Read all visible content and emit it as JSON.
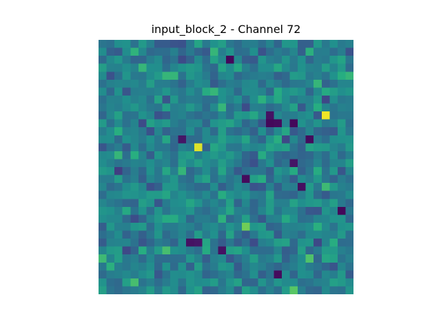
{
  "chart_data": {
    "type": "heatmap",
    "title": "input_block_2 - Channel 72",
    "xlabel": "",
    "ylabel": "",
    "rows": 32,
    "cols": 32,
    "colormap": "viridis",
    "vrange": [
      0,
      1
    ],
    "axes_visible": false,
    "grid": false,
    "legend": "none",
    "hot_cells": [
      {
        "row": 9,
        "col": 28,
        "value": 0.98
      },
      {
        "row": 13,
        "col": 12,
        "value": 0.95
      },
      {
        "row": 23,
        "col": 18,
        "value": 0.78
      },
      {
        "row": 27,
        "col": 26,
        "value": 0.72
      },
      {
        "row": 31,
        "col": 24,
        "value": 0.74
      },
      {
        "row": 26,
        "col": 8,
        "value": 0.7
      },
      {
        "row": 30,
        "col": 4,
        "value": 0.7
      },
      {
        "row": 27,
        "col": 0,
        "value": 0.68
      },
      {
        "row": 4,
        "col": 9,
        "value": 0.66
      },
      {
        "row": 6,
        "col": 14,
        "value": 0.66
      },
      {
        "row": 8,
        "col": 15,
        "value": 0.66
      },
      {
        "row": 18,
        "col": 28,
        "value": 0.68
      }
    ],
    "cold_cells": [
      {
        "row": 2,
        "col": 16,
        "value": 0.02
      },
      {
        "row": 10,
        "col": 21,
        "value": 0.02
      },
      {
        "row": 10,
        "col": 22,
        "value": 0.03
      },
      {
        "row": 9,
        "col": 21,
        "value": 0.05
      },
      {
        "row": 10,
        "col": 24,
        "value": 0.02
      },
      {
        "row": 12,
        "col": 26,
        "value": 0.03
      },
      {
        "row": 17,
        "col": 18,
        "value": 0.03
      },
      {
        "row": 18,
        "col": 25,
        "value": 0.04
      },
      {
        "row": 21,
        "col": 30,
        "value": 0.02
      },
      {
        "row": 29,
        "col": 22,
        "value": 0.03
      },
      {
        "row": 25,
        "col": 11,
        "value": 0.05
      },
      {
        "row": 25,
        "col": 12,
        "value": 0.06
      },
      {
        "row": 26,
        "col": 15,
        "value": 0.05
      },
      {
        "row": 15,
        "col": 24,
        "value": 0.06
      },
      {
        "row": 12,
        "col": 10,
        "value": 0.06
      }
    ]
  }
}
